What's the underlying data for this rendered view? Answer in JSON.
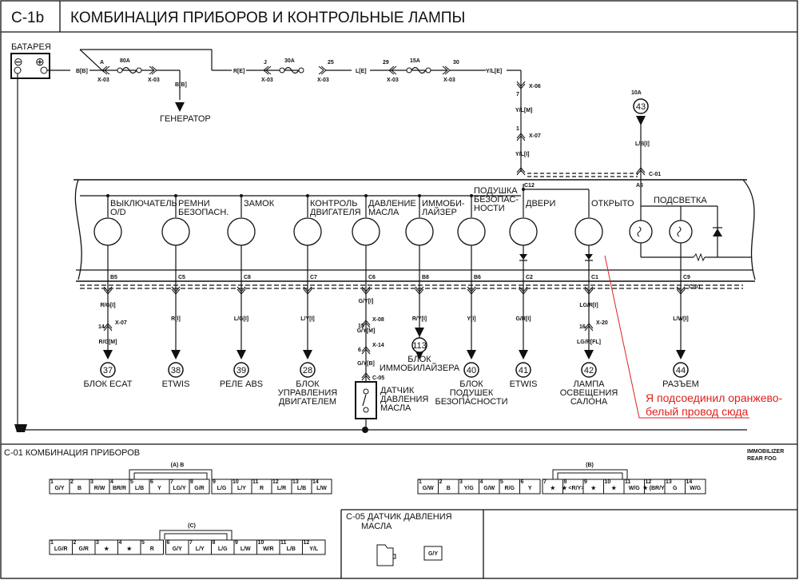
{
  "header": {
    "code": "C-1b",
    "title": "КОМБИНАЦИЯ ПРИБОРОВ И КОНТРОЛЬНЫЕ ЛАМПЫ"
  },
  "battery": {
    "label": "БАТАРЕЯ",
    "minus": "⊖",
    "plus": "⊕"
  },
  "top_wiring": {
    "wire1": "B[B]",
    "conn_a": "A",
    "x03": "X-03",
    "fuse1": "80A",
    "gen_wire": "B[B]",
    "generator": "ГЕНЕРАТОР",
    "wire2": "R[E]",
    "conn_j": "J",
    "fuse2": "30A",
    "pin25": "25",
    "wire3": "L[E]",
    "pin29": "29",
    "fuse3": "15A",
    "pin30": "30",
    "wire4": "Y/L[E]",
    "x06": "X-06",
    "pin7": "7",
    "wire5": "Y/L[M]",
    "x07": "X-07",
    "pin1": "1",
    "wire6": "Y/L[I]",
    "c01": "C-01",
    "c12": "C12",
    "fuse4": "10A",
    "ref43": "43",
    "wire7": "L/B[I]",
    "a5": "A5"
  },
  "lamps": [
    {
      "label": [
        "ВЫКЛЮЧАТЕЛЬ",
        "O/D"
      ],
      "pin": "B5"
    },
    {
      "label": [
        "РЕМНИ",
        "БЕЗОПАСН."
      ],
      "pin": "C5"
    },
    {
      "label": [
        "ЗАМОК"
      ],
      "pin": "C8"
    },
    {
      "label": [
        "КОНТРОЛЬ",
        "ДВИГАТЕЛЯ"
      ],
      "pin": "C7"
    },
    {
      "label": [
        "ДАВЛЕНИЕ",
        "МАСЛА"
      ],
      "pin": "C6"
    },
    {
      "label": [
        "ИММОБИ-",
        "ЛАЙЗЕР"
      ],
      "pin": "B8"
    },
    {
      "label": [
        "ПОДУШКА",
        "БЕЗОПАС-",
        "НОСТИ"
      ],
      "pin": "B6"
    },
    {
      "label": [
        "ДВЕРИ"
      ],
      "pin": "C2"
    },
    {
      "label": [
        "ОТКРЫТО"
      ],
      "pin": "C1"
    }
  ],
  "backlight": {
    "label": "ПОДСВЕТКА",
    "pin": "C9",
    "conn": "C-01"
  },
  "outputs": [
    {
      "wires": [
        "R/G[I]",
        "X-07",
        "14",
        "R/G[M]"
      ],
      "ref": "37",
      "label": [
        "БЛОК ECAT"
      ]
    },
    {
      "wires": [
        "R[I]"
      ],
      "ref": "38",
      "label": [
        "ETWIS"
      ]
    },
    {
      "wires": [
        "L/G[I]"
      ],
      "ref": "39",
      "label": [
        "РЕЛЕ ABS"
      ]
    },
    {
      "wires": [
        "L/Y[I]"
      ],
      "ref": "28",
      "label": [
        "БЛОК",
        "УПРАВЛЕНИЯ",
        "ДВИГАТЕЛЕМ"
      ]
    },
    {
      "wires": [
        "G/Y[I]",
        "X-08",
        "15",
        "G/Y[M]",
        "X-14",
        "6",
        "G/Y[B]",
        "C-05"
      ],
      "ref": "",
      "label": [
        "ДАТЧИК",
        "ДАВЛЕНИЯ",
        "МАСЛА"
      ]
    },
    {
      "wires": [
        "R/Y[I]"
      ],
      "ref": "113",
      "label": [
        "БЛОК",
        "ИММОБИЛАЙЗЕРА"
      ]
    },
    {
      "wires": [
        "Y[I]"
      ],
      "ref": "40",
      "label": [
        "БЛОК",
        "ПОДУШЕК",
        "БЕЗОПАСНОСТИ"
      ]
    },
    {
      "wires": [
        "G/R[I]"
      ],
      "ref": "41",
      "label": [
        "ETWIS"
      ]
    },
    {
      "wires": [
        "LG/R[I]",
        "X-20",
        "16",
        "LG/R[FL]"
      ],
      "ref": "42",
      "label": [
        "ЛАМПА",
        "ОСВЕЩЕНИЯ",
        "САЛОНА"
      ]
    },
    {
      "wires": [
        "L/W[I]"
      ],
      "ref": "44",
      "label": [
        "РАЗЪЕМ"
      ]
    }
  ],
  "annotation": {
    "lines": [
      "Я подсоединил оранжево-",
      "белый провод сюда"
    ],
    "color": "#e0201e"
  },
  "connectors": {
    "title": "C-01  КОМБИНАЦИЯ ПРИБОРОВ",
    "note": [
      "IMMOBILIZER",
      "REAR FOG"
    ],
    "a": {
      "label": "(A) B",
      "pins": [
        "G/Y",
        "B",
        "R/W",
        "BR/R",
        "L/B",
        "Y",
        "LG/Y",
        "G/R",
        "L/G",
        "L/Y",
        "R",
        "L/R",
        "L/B",
        "L/W"
      ]
    },
    "b": {
      "label": "(B)",
      "pins": [
        "G/W",
        "B",
        "Y/G",
        "G/W",
        "R/G",
        "Y",
        "★",
        "★ <R/Y>",
        "★",
        "★",
        "W/G",
        "★ (BR/Y)",
        "G",
        "W/G"
      ]
    },
    "c": {
      "label": "(C)",
      "pins": [
        "LG/R",
        "G/R",
        "★",
        "★",
        "R",
        "G/Y",
        "L/Y",
        "L/G",
        "L/W",
        "W/R",
        "L/B",
        "Y/L"
      ]
    },
    "c05": {
      "title": [
        "C-05  ДАТЧИК ДАВЛЕНИЯ",
        "МАСЛА"
      ],
      "pin": "G/Y"
    }
  }
}
